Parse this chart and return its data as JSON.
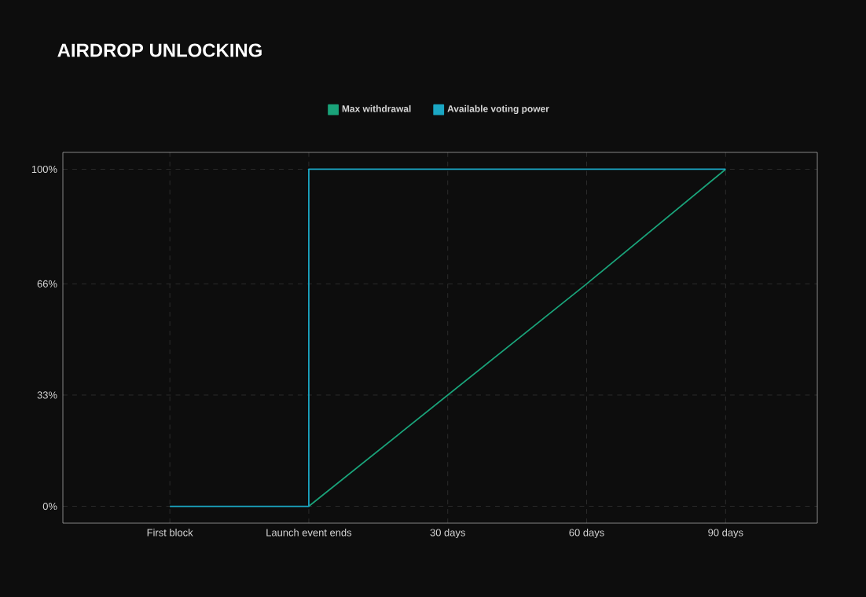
{
  "chart_data": {
    "type": "line",
    "title": "AIRDROP UNLOCKING",
    "categories": [
      "First block",
      "Launch event ends",
      "30 days",
      "60 days",
      "90 days"
    ],
    "series": [
      {
        "name": "Max withdrawal",
        "color": "#1aa37a",
        "values": [
          null,
          0,
          33,
          66,
          100
        ]
      },
      {
        "name": "Available voting power",
        "color": "#1ba7c4",
        "type": "step",
        "values": [
          0,
          100,
          100,
          100,
          100
        ]
      }
    ],
    "ylim": [
      -5,
      105
    ],
    "yticks": [
      {
        "value": 0,
        "label": "0%"
      },
      {
        "value": 33,
        "label": "33%"
      },
      {
        "value": 66,
        "label": "66%"
      },
      {
        "value": 100,
        "label": "100%"
      }
    ],
    "grid": true,
    "legend": "top"
  }
}
